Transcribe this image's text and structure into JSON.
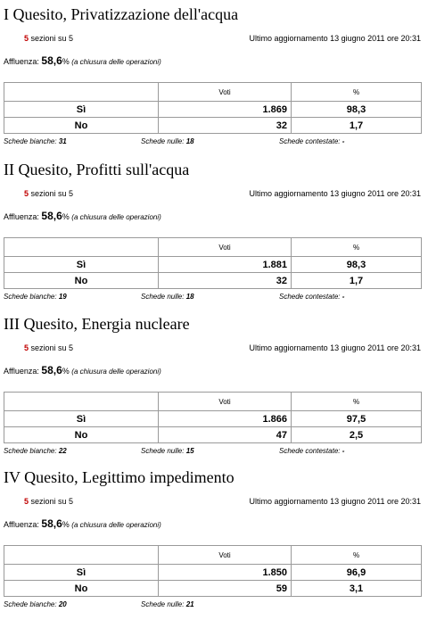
{
  "sections": [
    {
      "title": "I Quesito, Privatizzazione dell'acqua",
      "sezioni_count": "5",
      "sezioni_text": "sezioni su 5",
      "update": "Ultimo aggiornamento 13 giugno 2011 ore 20:31",
      "affluenza_label": "Affluenza:",
      "affluenza_value": "58,6",
      "affluenza_unit": "%",
      "affluenza_note": "(a chiusura delle operazioni)",
      "table": {
        "header": [
          "Voti",
          "%"
        ],
        "rows": [
          [
            "Sì",
            "1.869",
            "98,3"
          ],
          [
            "No",
            "32",
            "1,7"
          ]
        ]
      },
      "footer": [
        {
          "label": "Schede bianche:",
          "value": "31"
        },
        {
          "label": "Schede nulle:",
          "value": "18"
        },
        {
          "label": "Schede contestate:",
          "value": "-"
        }
      ]
    },
    {
      "title": "II Quesito, Profitti sull'acqua",
      "sezioni_count": "5",
      "sezioni_text": "sezioni su 5",
      "update": "Ultimo aggiornamento 13 giugno 2011 ore 20:31",
      "affluenza_label": "Affluenza:",
      "affluenza_value": "58,6",
      "affluenza_unit": "%",
      "affluenza_note": "(a chiusura delle operazioni)",
      "table": {
        "header": [
          "Voti",
          "%"
        ],
        "rows": [
          [
            "Sì",
            "1.881",
            "98,3"
          ],
          [
            "No",
            "32",
            "1,7"
          ]
        ]
      },
      "footer": [
        {
          "label": "Schede bianche:",
          "value": "19"
        },
        {
          "label": "Schede nulle:",
          "value": "18"
        },
        {
          "label": "Schede contestate:",
          "value": "-"
        }
      ]
    },
    {
      "title": "III Quesito, Energia nucleare",
      "sezioni_count": "5",
      "sezioni_text": "sezioni su 5",
      "update": "Ultimo aggiornamento 13 giugno 2011 ore 20:31",
      "affluenza_label": "Affluenza:",
      "affluenza_value": "58,6",
      "affluenza_unit": "%",
      "affluenza_note": "(a chiusura delle operazioni)",
      "table": {
        "header": [
          "Voti",
          "%"
        ],
        "rows": [
          [
            "Sì",
            "1.866",
            "97,5"
          ],
          [
            "No",
            "47",
            "2,5"
          ]
        ]
      },
      "footer": [
        {
          "label": "Schede bianche:",
          "value": "22"
        },
        {
          "label": "Schede nulle:",
          "value": "15"
        },
        {
          "label": "Schede contestate:",
          "value": "-"
        }
      ]
    },
    {
      "title": "IV Quesito, Legittimo impedimento",
      "sezioni_count": "5",
      "sezioni_text": "sezioni su 5",
      "update": "Ultimo aggiornamento 13 giugno 2011 ore 20:31",
      "affluenza_label": "Affluenza:",
      "affluenza_value": "58,6",
      "affluenza_unit": "%",
      "affluenza_note": "(a chiusura delle operazioni)",
      "table": {
        "header": [
          "Voti",
          "%"
        ],
        "rows": [
          [
            "Sì",
            "1.850",
            "96,9"
          ],
          [
            "No",
            "59",
            "3,1"
          ]
        ]
      },
      "footer": [
        {
          "label": "Schede bianche:",
          "value": "20"
        },
        {
          "label": "Schede nulle:",
          "value": "21"
        }
      ]
    }
  ]
}
